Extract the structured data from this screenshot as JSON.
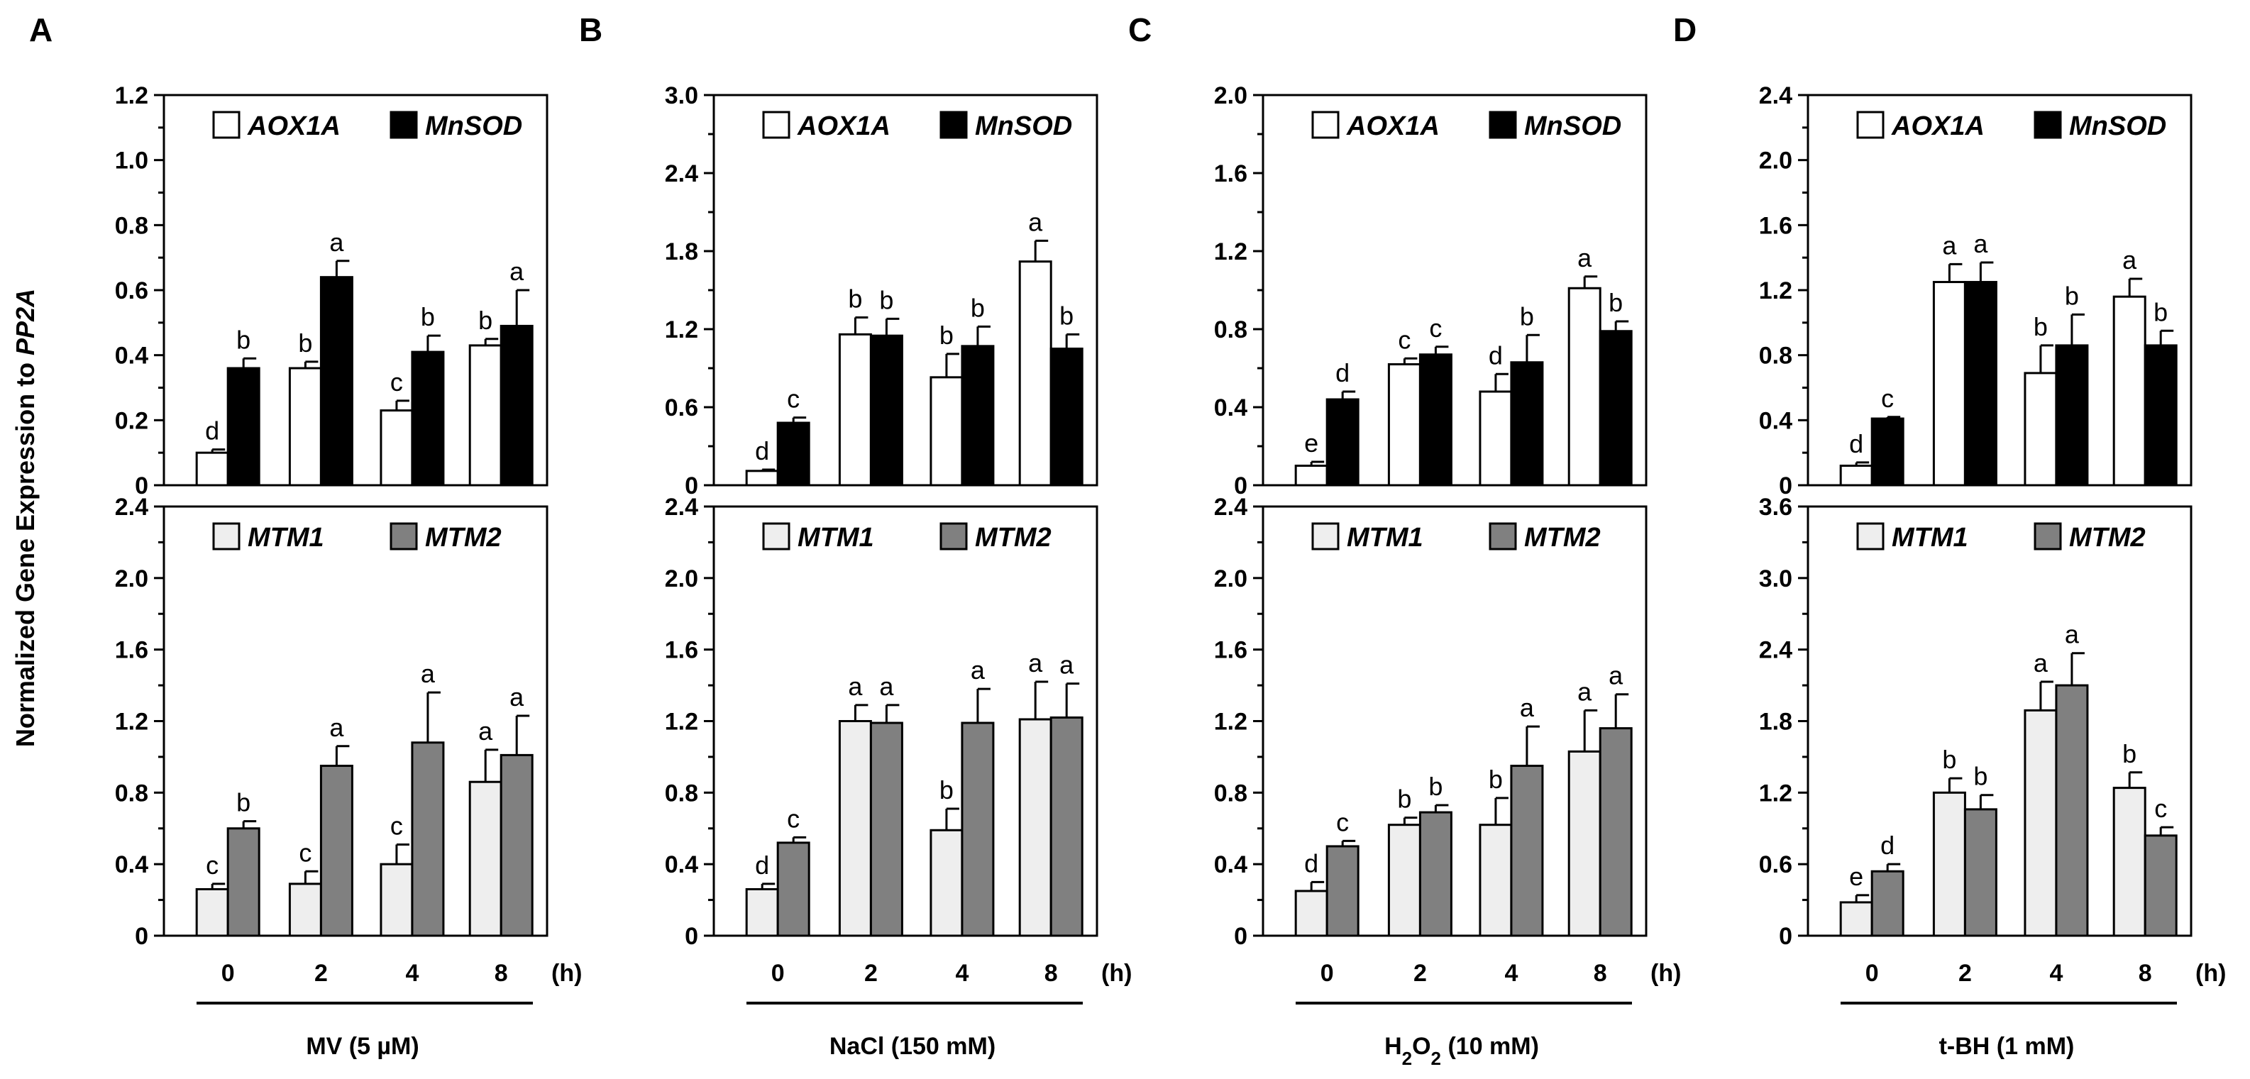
{
  "chart_data": {
    "type": "bar",
    "y_axis_title": "Normalized Gene Expression to",
    "y_axis_title_gene": "PP2A",
    "x_categories": [
      "0",
      "2",
      "4",
      "8"
    ],
    "x_unit": "(h)",
    "columns": [
      {
        "panel": "A",
        "treatment": "MV (5 µM)",
        "treatment_main": "MV (5 µM)",
        "treatment_sub": "",
        "treatment_tail": "",
        "top": {
          "ylim": [
            0,
            1.2
          ],
          "ticks": [
            "0",
            "0.2",
            "0.4",
            "0.6",
            "0.8",
            "1.0",
            "1.2"
          ],
          "series": [
            {
              "name": "AOX1A",
              "fill": "#ffffff",
              "values": [
                0.1,
                0.36,
                0.23,
                0.43
              ],
              "errors": [
                0.01,
                0.02,
                0.03,
                0.02
              ],
              "letters": [
                "d",
                "b",
                "c",
                "b"
              ]
            },
            {
              "name": "MnSOD",
              "fill": "#000000",
              "values": [
                0.36,
                0.64,
                0.41,
                0.49
              ],
              "errors": [
                0.03,
                0.05,
                0.05,
                0.11
              ],
              "letters": [
                "b",
                "a",
                "b",
                "a"
              ]
            }
          ]
        },
        "bottom": {
          "ylim": [
            0,
            2.4
          ],
          "ticks": [
            "0",
            "0.4",
            "0.8",
            "1.2",
            "1.6",
            "2.0",
            "2.4"
          ],
          "series": [
            {
              "name": "MTM1",
              "fill": "#eeeeee",
              "values": [
                0.26,
                0.29,
                0.4,
                0.86
              ],
              "errors": [
                0.03,
                0.07,
                0.11,
                0.18
              ],
              "letters": [
                "c",
                "c",
                "c",
                "a"
              ]
            },
            {
              "name": "MTM2",
              "fill": "#808080",
              "values": [
                0.6,
                0.95,
                1.08,
                1.01
              ],
              "errors": [
                0.04,
                0.11,
                0.28,
                0.22
              ],
              "letters": [
                "b",
                "a",
                "a",
                "a"
              ]
            }
          ]
        }
      },
      {
        "panel": "B",
        "treatment": "NaCl (150 mM)",
        "treatment_main": "NaCl (150 mM)",
        "treatment_sub": "",
        "treatment_tail": "",
        "top": {
          "ylim": [
            0,
            3.0
          ],
          "ticks": [
            "0",
            "0.6",
            "1.2",
            "1.8",
            "2.4",
            "3.0"
          ],
          "series": [
            {
              "name": "AOX1A",
              "fill": "#ffffff",
              "values": [
                0.11,
                1.16,
                0.83,
                1.72
              ],
              "errors": [
                0.01,
                0.13,
                0.18,
                0.16
              ],
              "letters": [
                "d",
                "b",
                "b",
                "a"
              ]
            },
            {
              "name": "MnSOD",
              "fill": "#000000",
              "values": [
                0.48,
                1.15,
                1.07,
                1.05
              ],
              "errors": [
                0.04,
                0.13,
                0.15,
                0.11
              ],
              "letters": [
                "c",
                "b",
                "b",
                "b"
              ]
            }
          ]
        },
        "bottom": {
          "ylim": [
            0,
            2.4
          ],
          "ticks": [
            "0",
            "0.4",
            "0.8",
            "1.2",
            "1.6",
            "2.0",
            "2.4"
          ],
          "series": [
            {
              "name": "MTM1",
              "fill": "#eeeeee",
              "values": [
                0.26,
                1.2,
                0.59,
                1.21
              ],
              "errors": [
                0.03,
                0.09,
                0.12,
                0.21
              ],
              "letters": [
                "d",
                "a",
                "b",
                "a"
              ]
            },
            {
              "name": "MTM2",
              "fill": "#808080",
              "values": [
                0.52,
                1.19,
                1.19,
                1.22
              ],
              "errors": [
                0.03,
                0.1,
                0.19,
                0.19
              ],
              "letters": [
                "c",
                "a",
                "a",
                "a"
              ]
            }
          ]
        }
      },
      {
        "panel": "C",
        "treatment": "H2O2 (10 mM)",
        "treatment_main": "H",
        "treatment_sub": "2",
        "treatment_tail": "O",
        "treatment_sub2": "2",
        "treatment_rest": " (10 mM)",
        "top": {
          "ylim": [
            0,
            2.0
          ],
          "ticks": [
            "0",
            "0.4",
            "0.8",
            "1.2",
            "1.6",
            "2.0"
          ],
          "series": [
            {
              "name": "AOX1A",
              "fill": "#ffffff",
              "values": [
                0.1,
                0.62,
                0.48,
                1.01
              ],
              "errors": [
                0.02,
                0.03,
                0.09,
                0.06
              ],
              "letters": [
                "e",
                "c",
                "d",
                "a"
              ]
            },
            {
              "name": "MnSOD",
              "fill": "#000000",
              "values": [
                0.44,
                0.67,
                0.63,
                0.79
              ],
              "errors": [
                0.04,
                0.04,
                0.14,
                0.05
              ],
              "letters": [
                "d",
                "c",
                "b",
                "b"
              ]
            }
          ]
        },
        "bottom": {
          "ylim": [
            0,
            2.4
          ],
          "ticks": [
            "0",
            "0.4",
            "0.8",
            "1.2",
            "1.6",
            "2.0",
            "2.4"
          ],
          "series": [
            {
              "name": "MTM1",
              "fill": "#eeeeee",
              "values": [
                0.25,
                0.62,
                0.62,
                1.03
              ],
              "errors": [
                0.05,
                0.04,
                0.15,
                0.23
              ],
              "letters": [
                "d",
                "b",
                "b",
                "a"
              ]
            },
            {
              "name": "MTM2",
              "fill": "#808080",
              "values": [
                0.5,
                0.69,
                0.95,
                1.16
              ],
              "errors": [
                0.03,
                0.04,
                0.22,
                0.19
              ],
              "letters": [
                "c",
                "b",
                "a",
                "a"
              ]
            }
          ]
        }
      },
      {
        "panel": "D",
        "treatment": "t-BH (1 mM)",
        "treatment_main": "t-BH (1 mM)",
        "treatment_sub": "",
        "treatment_tail": "",
        "top": {
          "ylim": [
            0,
            2.4
          ],
          "ticks": [
            "0",
            "0.4",
            "0.8",
            "1.2",
            "1.6",
            "2.0",
            "2.4"
          ],
          "series": [
            {
              "name": "AOX1A",
              "fill": "#ffffff",
              "values": [
                0.12,
                1.25,
                0.69,
                1.16
              ],
              "errors": [
                0.02,
                0.11,
                0.17,
                0.11
              ],
              "letters": [
                "d",
                "a",
                "b",
                "a"
              ]
            },
            {
              "name": "MnSOD",
              "fill": "#000000",
              "values": [
                0.41,
                1.25,
                0.86,
                0.86
              ],
              "errors": [
                0.01,
                0.12,
                0.19,
                0.09
              ],
              "letters": [
                "c",
                "a",
                "b",
                "b"
              ]
            }
          ]
        },
        "bottom": {
          "ylim": [
            0,
            3.6
          ],
          "ticks": [
            "0",
            "0.6",
            "1.2",
            "1.8",
            "2.4",
            "3.0",
            "3.6"
          ],
          "series": [
            {
              "name": "MTM1",
              "fill": "#eeeeee",
              "values": [
                0.28,
                1.2,
                1.89,
                1.24
              ],
              "errors": [
                0.06,
                0.12,
                0.24,
                0.13
              ],
              "letters": [
                "e",
                "b",
                "a",
                "b"
              ]
            },
            {
              "name": "MTM2",
              "fill": "#808080",
              "values": [
                0.54,
                1.06,
                2.1,
                0.84
              ],
              "errors": [
                0.06,
                0.12,
                0.27,
                0.07
              ],
              "letters": [
                "d",
                "b",
                "a",
                "c"
              ]
            }
          ]
        }
      }
    ]
  }
}
